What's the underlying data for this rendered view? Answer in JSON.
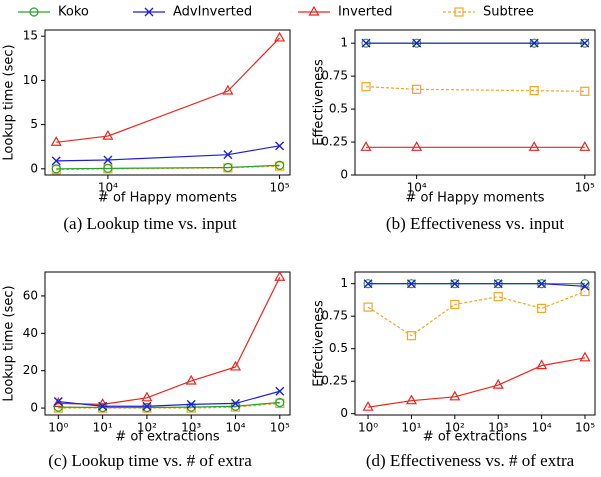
{
  "legend": [
    {
      "name": "Koko",
      "color": "#2ca02c",
      "marker": "circle",
      "linestyle": "solid"
    },
    {
      "name": "AdvInverted",
      "color": "#1f1fd6",
      "marker": "x",
      "linestyle": "solid"
    },
    {
      "name": "Inverted",
      "color": "#e8261f",
      "marker": "triangle",
      "linestyle": "solid"
    },
    {
      "name": "Subtree",
      "color": "#f5a623",
      "marker": "square",
      "linestyle": "dashed"
    }
  ],
  "chart_data": [
    {
      "type": "line",
      "xlabel": "# of Happy moments",
      "ylabel": "Lookup time (sec)",
      "caption": "(a) Lookup time vs. input",
      "xlog": true,
      "x": [
        5000,
        10000,
        50000,
        100000
      ],
      "xlim": [
        4300,
        115000
      ],
      "xticks": [
        {
          "value": 10000,
          "label": "10⁴"
        },
        {
          "value": 100000,
          "label": "10⁵"
        }
      ],
      "ylim": [
        -0.7,
        15.7
      ],
      "yticks": [
        0,
        5,
        10,
        15
      ],
      "series": [
        {
          "values": [
            0,
            0.05,
            0.15,
            0.4
          ]
        },
        {
          "values": [
            0.9,
            1.0,
            1.6,
            2.6
          ]
        },
        {
          "values": [
            3.0,
            3.7,
            8.8,
            14.8
          ]
        },
        {
          "values": [
            -0.1,
            0,
            0.1,
            0.3
          ]
        }
      ]
    },
    {
      "type": "line",
      "xlabel": "# of Happy moments",
      "ylabel": "Effectiveness",
      "caption": "(b) Effectiveness vs. input",
      "xlog": true,
      "x": [
        5000,
        10000,
        50000,
        100000
      ],
      "xlim": [
        4300,
        115000
      ],
      "xticks": [
        {
          "value": 10000,
          "label": "10⁴"
        },
        {
          "value": 100000,
          "label": "10⁵"
        }
      ],
      "ylim": [
        0,
        1.1
      ],
      "yticks": [
        0,
        0.25,
        0.5,
        0.75,
        1
      ],
      "series": [
        {
          "values": [
            1,
            1,
            1,
            1
          ]
        },
        {
          "values": [
            1,
            1,
            1,
            1
          ]
        },
        {
          "values": [
            0.21,
            0.21,
            0.21,
            0.21
          ]
        },
        {
          "values": [
            0.67,
            0.65,
            0.64,
            0.635
          ]
        }
      ]
    },
    {
      "type": "line",
      "xlabel": "# of extractions",
      "ylabel": "Lookup time (sec)",
      "caption": "(c) Lookup time vs. # of extra",
      "xlog": true,
      "x": [
        1,
        10,
        100,
        1000,
        10000,
        100000
      ],
      "xlim": [
        0.5,
        170000
      ],
      "xticks": [
        {
          "value": 1,
          "label": "10⁰"
        },
        {
          "value": 10,
          "label": "10¹"
        },
        {
          "value": 100,
          "label": "10²"
        },
        {
          "value": 1000,
          "label": "10³"
        },
        {
          "value": 10000,
          "label": "10⁴"
        },
        {
          "value": 100000,
          "label": "10⁵"
        }
      ],
      "ylim": [
        -3.7,
        72.8
      ],
      "yticks": [
        0,
        20,
        40,
        60
      ],
      "series": [
        {
          "values": [
            0.5,
            0.3,
            0.3,
            0.5,
            1,
            3
          ]
        },
        {
          "values": [
            3.5,
            1,
            1,
            2,
            2.5,
            9
          ]
        },
        {
          "values": [
            2.5,
            2,
            5.5,
            14.5,
            22,
            70
          ]
        },
        {
          "values": [
            0,
            0,
            0,
            0,
            0.5,
            2.5
          ]
        }
      ]
    },
    {
      "type": "line",
      "xlabel": "# of extractions",
      "ylabel": "Effectiveness",
      "caption": "(d) Effectiveness vs. # of extra",
      "xlog": true,
      "x": [
        1,
        10,
        100,
        1000,
        10000,
        100000
      ],
      "xlim": [
        0.5,
        170000
      ],
      "xticks": [
        {
          "value": 1,
          "label": "10⁰"
        },
        {
          "value": 10,
          "label": "10¹"
        },
        {
          "value": 100,
          "label": "10²"
        },
        {
          "value": 1000,
          "label": "10³"
        },
        {
          "value": 10000,
          "label": "10⁴"
        },
        {
          "value": 100000,
          "label": "10⁵"
        }
      ],
      "ylim": [
        -0.01,
        1.09
      ],
      "yticks": [
        0,
        0.25,
        0.5,
        0.75,
        1
      ],
      "series": [
        {
          "values": [
            1,
            1,
            1,
            1,
            1,
            1
          ]
        },
        {
          "values": [
            1,
            1,
            1,
            1,
            1,
            0.98
          ]
        },
        {
          "values": [
            0.05,
            0.1,
            0.13,
            0.22,
            0.37,
            0.43
          ]
        },
        {
          "values": [
            0.82,
            0.6,
            0.84,
            0.9,
            0.81,
            0.94
          ]
        }
      ]
    }
  ]
}
